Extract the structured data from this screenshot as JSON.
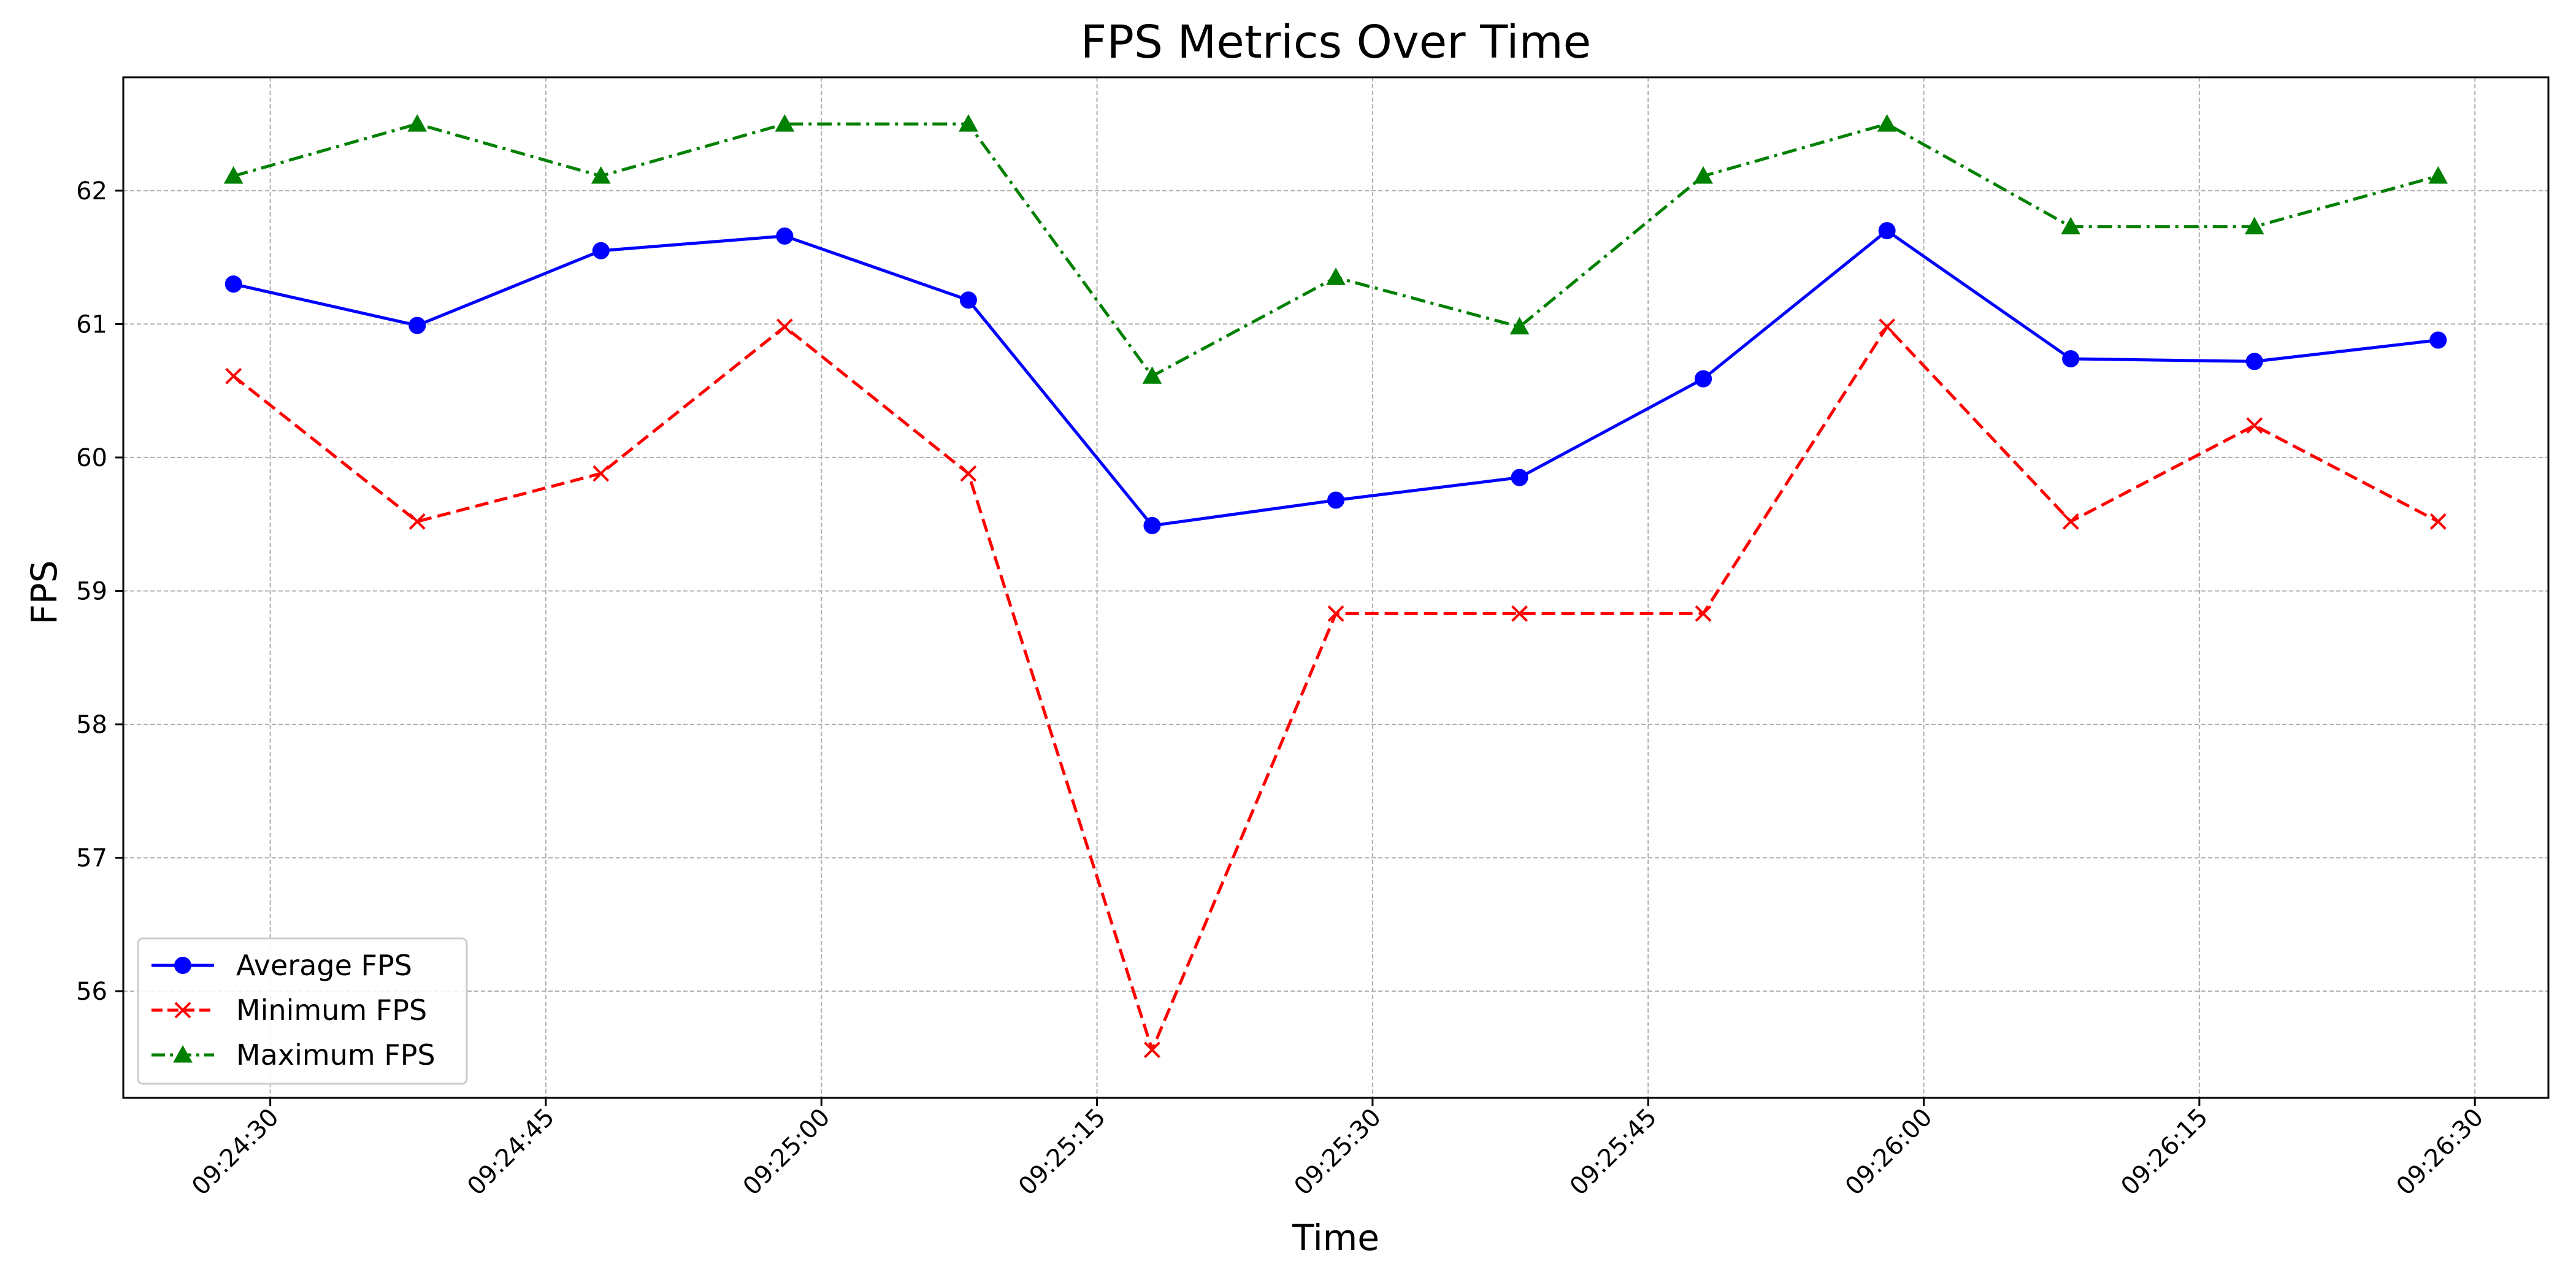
{
  "chart_data": {
    "type": "line",
    "title": "FPS Metrics Over Time",
    "xlabel": "Time",
    "ylabel": "FPS",
    "x": [
      "09:24:28",
      "09:24:38",
      "09:24:48",
      "09:24:58",
      "09:25:08",
      "09:25:18",
      "09:25:28",
      "09:25:38",
      "09:25:48",
      "09:25:58",
      "09:26:08",
      "09:26:18",
      "09:26:28"
    ],
    "x_ticks": [
      "09:24:30",
      "09:24:45",
      "09:25:00",
      "09:25:15",
      "09:25:30",
      "09:25:45",
      "09:26:00",
      "09:26:15",
      "09:26:30"
    ],
    "y_ticks": [
      56,
      57,
      58,
      59,
      60,
      61,
      62
    ],
    "xlim": [
      "09:24:22",
      "09:26:34"
    ],
    "ylim": [
      55.2,
      62.85
    ],
    "grid": true,
    "legend_position": "lower-left",
    "series": [
      {
        "name": "Average FPS",
        "color": "#0000ff",
        "marker": "circle",
        "line_style": "solid",
        "values": [
          61.3,
          60.99,
          61.55,
          61.66,
          61.18,
          59.49,
          59.68,
          59.85,
          60.59,
          61.7,
          60.74,
          60.72,
          60.88
        ]
      },
      {
        "name": "Minimum FPS",
        "color": "#ff0000",
        "marker": "x",
        "line_style": "dashed",
        "values": [
          60.61,
          59.52,
          59.88,
          60.98,
          59.88,
          55.56,
          58.83,
          58.83,
          58.83,
          60.98,
          59.52,
          60.24,
          59.52
        ]
      },
      {
        "name": "Maximum FPS",
        "color": "#008000",
        "marker": "triangle",
        "line_style": "dashdot",
        "values": [
          62.11,
          62.5,
          62.11,
          62.5,
          62.5,
          60.61,
          61.35,
          60.98,
          62.11,
          62.5,
          61.73,
          61.73,
          62.11
        ]
      }
    ]
  }
}
